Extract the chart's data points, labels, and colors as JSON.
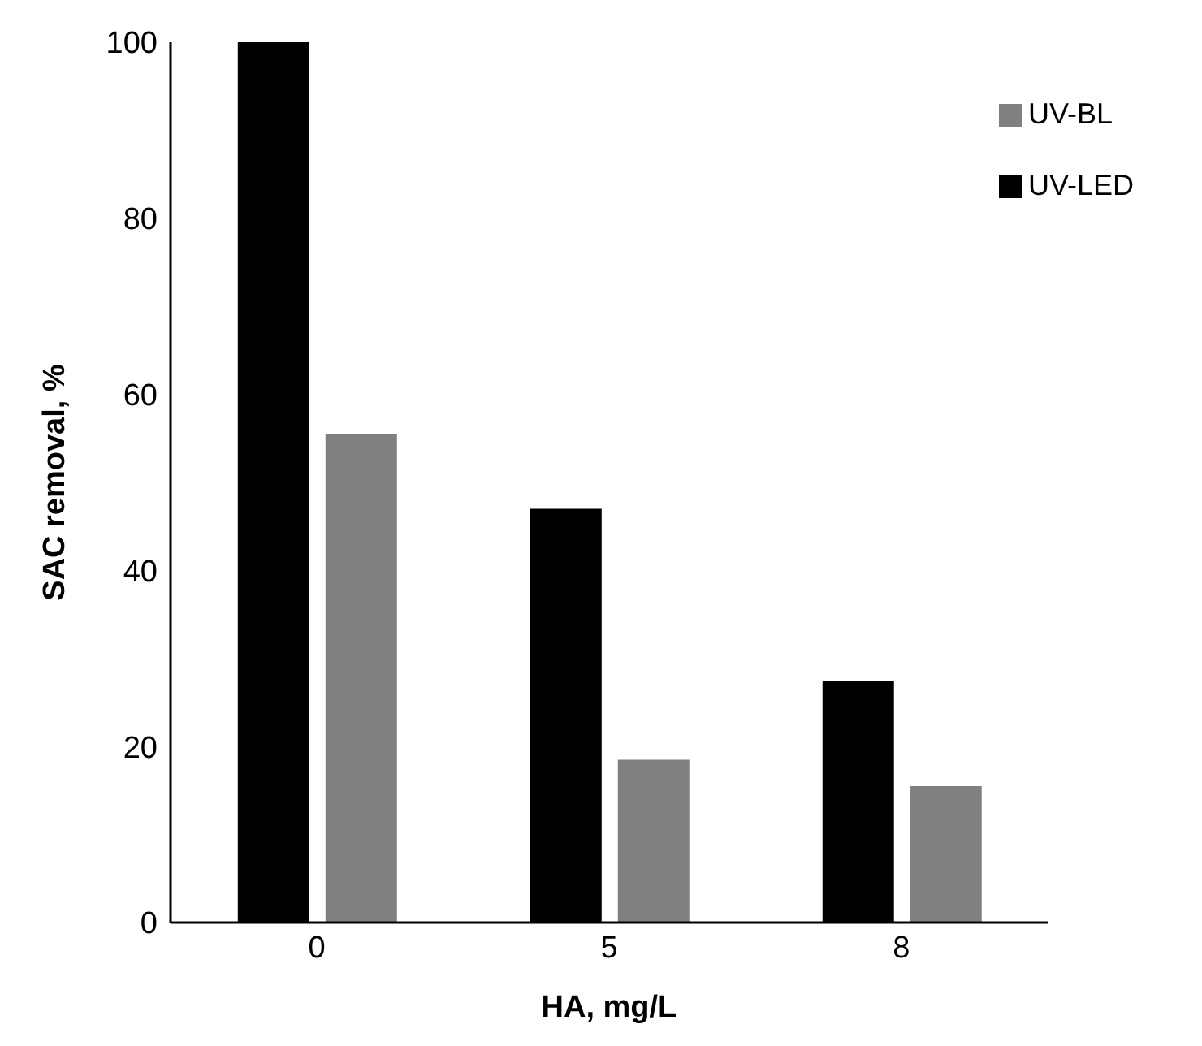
{
  "chart_data": {
    "type": "bar",
    "xlabel": "HA, mg/L",
    "ylabel": "SAC removal, %",
    "categories": [
      "0",
      "5",
      "8"
    ],
    "series": [
      {
        "name": "UV-LED",
        "color": "#000000",
        "values": [
          100,
          47,
          27.5
        ]
      },
      {
        "name": "UV-BL",
        "color": "#808080",
        "values": [
          55.5,
          18.5,
          15.5
        ]
      }
    ],
    "ylim": [
      0,
      100
    ],
    "yticks": [
      0,
      20,
      40,
      60,
      80,
      100
    ],
    "grid": false,
    "legend": "top right"
  }
}
